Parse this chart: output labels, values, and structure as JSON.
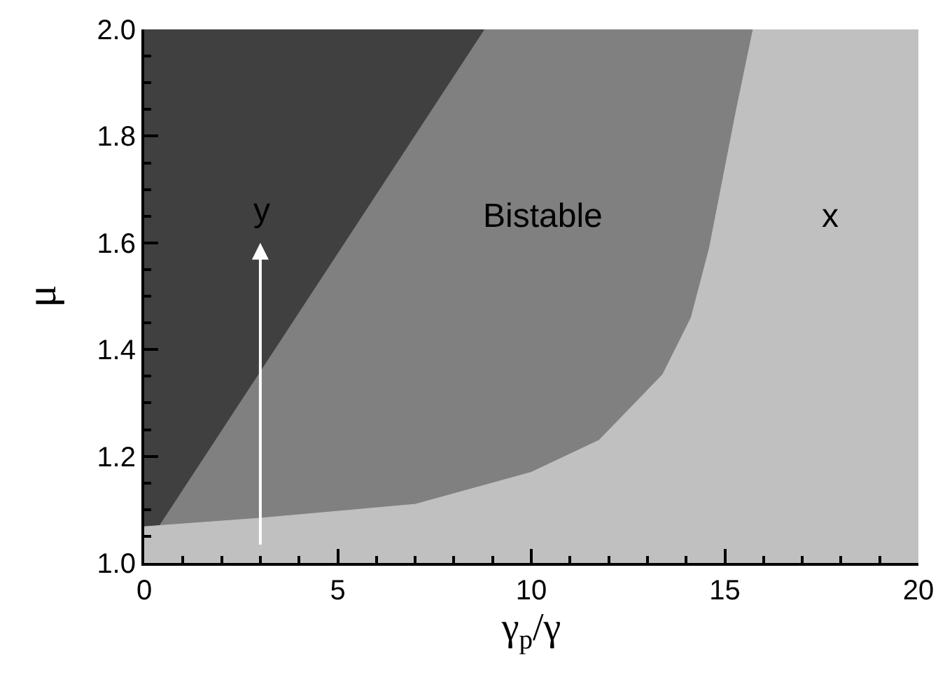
{
  "chart_data": {
    "type": "area",
    "xlabel": "γ$_{p}$/γ",
    "ylabel": "μ",
    "xlim": [
      0,
      20
    ],
    "ylim": [
      1.0,
      2.0
    ],
    "xticks": [
      0,
      {
        "value": 1,
        "label": null
      },
      {
        "value": 2,
        "label": null
      },
      {
        "value": 3,
        "label": null
      },
      {
        "value": 4,
        "label": null
      },
      5,
      {
        "value": 6,
        "label": null
      },
      {
        "value": 7,
        "label": null
      },
      {
        "value": 8,
        "label": null
      },
      {
        "value": 9,
        "label": null
      },
      10,
      {
        "value": 11,
        "label": null
      },
      {
        "value": 12,
        "label": null
      },
      {
        "value": 13,
        "label": null
      },
      {
        "value": 14,
        "label": null
      },
      15,
      {
        "value": 16,
        "label": null
      },
      {
        "value": 17,
        "label": null
      },
      {
        "value": 18,
        "label": null
      },
      {
        "value": 19,
        "label": null
      },
      20
    ],
    "yticks": [
      {
        "value": 1.0,
        "label": "1.0"
      },
      {
        "value": 1.05,
        "label": null
      },
      {
        "value": 1.1,
        "label": null
      },
      {
        "value": 1.15,
        "label": null
      },
      1.2,
      {
        "value": 1.25,
        "label": null
      },
      {
        "value": 1.3,
        "label": null
      },
      {
        "value": 1.35,
        "label": null
      },
      1.4,
      {
        "value": 1.45,
        "label": null
      },
      {
        "value": 1.5,
        "label": null
      },
      {
        "value": 1.55,
        "label": null
      },
      1.6,
      {
        "value": 1.65,
        "label": null
      },
      {
        "value": 1.7,
        "label": null
      },
      {
        "value": 1.75,
        "label": null
      },
      1.8,
      {
        "value": 1.85,
        "label": null
      },
      {
        "value": 1.9,
        "label": null
      },
      {
        "value": 1.95,
        "label": null
      },
      {
        "value": 2.0,
        "label": "2.0"
      }
    ],
    "series": [
      {
        "color": "#404040",
        "x": [
          0,
          8.8
        ],
        "values": [
          2.0,
          2.0
        ]
      },
      {
        "color": "#808080",
        "x": [
          0.4,
          8.8,
          20
        ],
        "values": [
          1.07,
          2.0,
          2.0
        ]
      },
      {
        "color": "#c0c0c0",
        "x": [
          0,
          3,
          7,
          10,
          11.75,
          12.95,
          13.4,
          14.13,
          14.6,
          14.95,
          15.3,
          15.73,
          20
        ],
        "values": [
          1.068,
          1.084,
          1.11,
          1.17,
          1.23,
          1.32,
          1.354,
          1.46,
          1.59,
          1.72,
          1.85,
          2.0,
          2.0
        ]
      }
    ],
    "annotations": [
      "y",
      "Bistable",
      "x"
    ]
  }
}
